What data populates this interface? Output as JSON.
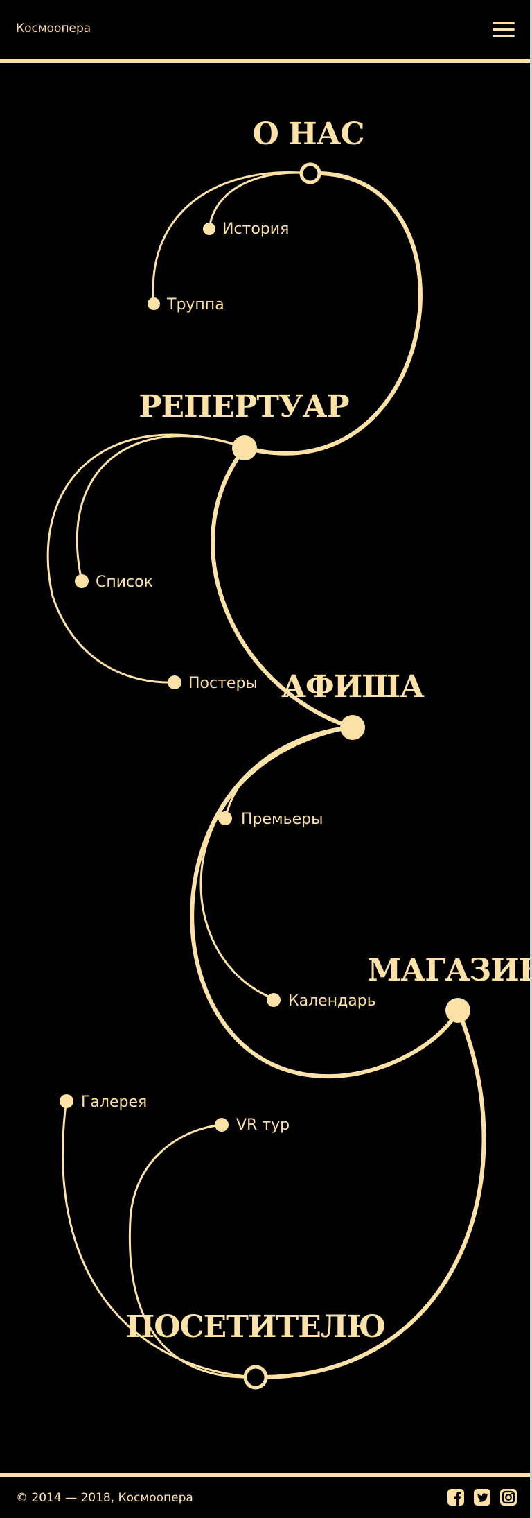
{
  "header": {
    "brand": "Космоопера"
  },
  "nav": {
    "hubs": [
      {
        "label": "О НАС"
      },
      {
        "label": "РЕПЕРТУАР"
      },
      {
        "label": "АФИША"
      },
      {
        "label": "МАГАЗИН"
      },
      {
        "label": "ПОСЕТИТЕЛЮ"
      }
    ],
    "links": [
      {
        "label": "История"
      },
      {
        "label": "Труппа"
      },
      {
        "label": "Список"
      },
      {
        "label": "Постеры"
      },
      {
        "label": "Премьеры"
      },
      {
        "label": "Календарь"
      },
      {
        "label": "Галерея"
      },
      {
        "label": "VR тур"
      }
    ]
  },
  "footer": {
    "copyright": "© 2014 — 2018, Космоопера",
    "social": [
      "facebook-icon",
      "twitter-icon",
      "instagram-icon"
    ]
  },
  "colors": {
    "background": "#000000",
    "accent": "#fde2a8"
  }
}
